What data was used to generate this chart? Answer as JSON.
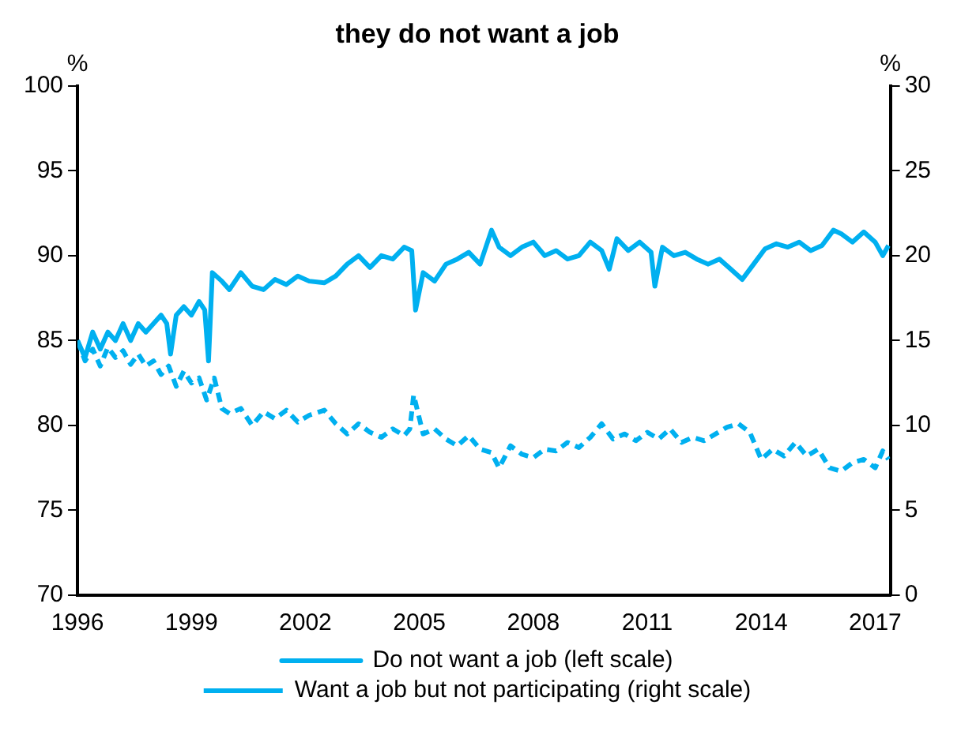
{
  "chart_data": {
    "type": "line",
    "title": "they do not want a job",
    "ylabel": "%",
    "y2label": "%",
    "xlim": [
      1996,
      2017.4
    ],
    "xticks": [
      1996,
      1999,
      2002,
      2005,
      2008,
      2011,
      2014,
      2017
    ],
    "ylim": [
      70,
      100
    ],
    "yticks": [
      70,
      75,
      80,
      85,
      90,
      95,
      100
    ],
    "y2lim": [
      0,
      30
    ],
    "y2ticks": [
      0,
      5,
      10,
      15,
      20,
      25,
      30
    ],
    "legend": "bottom",
    "grid": false,
    "series": [
      {
        "name": "Do not want a job (left scale)",
        "color": "#00b0f0",
        "line_style": "solid",
        "x": [
          1996,
          1996.2,
          1996.4,
          1996.6,
          1996.8,
          1997,
          1997.2,
          1997.4,
          1997.6,
          1997.8,
          1998,
          1998.2,
          1998.35,
          1998.45,
          1998.6,
          1998.8,
          1999,
          1999.2,
          1999.35,
          1999.45,
          1999.55,
          1999.8,
          2000,
          2000.3,
          2000.6,
          2000.9,
          2001.2,
          2001.5,
          2001.8,
          2002.1,
          2002.5,
          2002.8,
          2003.1,
          2003.4,
          2003.7,
          2004,
          2004.3,
          2004.6,
          2004.8,
          2004.9,
          2005.1,
          2005.4,
          2005.7,
          2006,
          2006.3,
          2006.6,
          2006.9,
          2007.1,
          2007.4,
          2007.7,
          2008,
          2008.3,
          2008.6,
          2008.9,
          2009.2,
          2009.5,
          2009.8,
          2010,
          2010.2,
          2010.5,
          2010.8,
          2011.1,
          2011.2,
          2011.4,
          2011.7,
          2012,
          2012.3,
          2012.6,
          2012.9,
          2013.2,
          2013.5,
          2013.8,
          2014.1,
          2014.4,
          2014.7,
          2015,
          2015.3,
          2015.6,
          2015.9,
          2016.1,
          2016.4,
          2016.7,
          2017,
          2017.2,
          2017.35
        ],
        "values": [
          85,
          84,
          85.5,
          84.5,
          85.5,
          85,
          86,
          85,
          86,
          85.5,
          86,
          86.5,
          86,
          84.2,
          86.5,
          87,
          86.5,
          87.3,
          86.8,
          83.8,
          89,
          88.5,
          88,
          89,
          88.2,
          88,
          88.6,
          88.3,
          88.8,
          88.5,
          88.4,
          88.8,
          89.5,
          90,
          89.3,
          90,
          89.8,
          90.5,
          90.3,
          86.8,
          89,
          88.5,
          89.5,
          89.8,
          90.2,
          89.5,
          91.5,
          90.5,
          90,
          90.5,
          90.8,
          90,
          90.3,
          89.8,
          90,
          90.8,
          90.3,
          89.2,
          91,
          90.3,
          90.8,
          90.2,
          88.2,
          90.5,
          90,
          90.2,
          89.8,
          89.5,
          89.8,
          89.2,
          88.6,
          89.5,
          90.4,
          90.7,
          90.5,
          90.8,
          90.3,
          90.6,
          91.5,
          91.3,
          90.8,
          91.4,
          90.8,
          90,
          90.6
        ]
      },
      {
        "name": "Want a job but not participating (right scale)",
        "color": "#00b0f0",
        "line_style": "dashed",
        "axis": "y2",
        "x": [
          1996,
          1996.2,
          1996.4,
          1996.6,
          1996.8,
          1997,
          1997.2,
          1997.4,
          1997.6,
          1997.8,
          1998,
          1998.2,
          1998.4,
          1998.6,
          1998.8,
          1999,
          1999.2,
          1999.4,
          1999.6,
          1999.8,
          2000,
          2000.3,
          2000.6,
          2000.9,
          2001.2,
          2001.5,
          2001.8,
          2002.1,
          2002.5,
          2002.8,
          2003.1,
          2003.4,
          2003.7,
          2004,
          2004.3,
          2004.6,
          2004.75,
          2004.85,
          2005.1,
          2005.4,
          2005.7,
          2006,
          2006.3,
          2006.6,
          2006.9,
          2007.1,
          2007.4,
          2007.7,
          2008,
          2008.3,
          2008.6,
          2008.9,
          2009.2,
          2009.5,
          2009.8,
          2010.1,
          2010.4,
          2010.7,
          2011,
          2011.3,
          2011.6,
          2011.9,
          2012.2,
          2012.5,
          2012.8,
          2013.1,
          2013.4,
          2013.7,
          2014,
          2014.3,
          2014.6,
          2014.9,
          2015.2,
          2015.5,
          2015.8,
          2016.1,
          2016.4,
          2016.7,
          2017,
          2017.2,
          2017.35
        ],
        "values": [
          15,
          13.8,
          14.5,
          13.5,
          14.6,
          14,
          14.4,
          13.6,
          14.2,
          13.5,
          13.8,
          13,
          13.5,
          12.3,
          13.2,
          12.5,
          12.8,
          11.5,
          12.8,
          11,
          10.7,
          11,
          10,
          10.8,
          10.4,
          10.9,
          10.2,
          10.6,
          10.9,
          10.1,
          9.5,
          10.1,
          9.6,
          9.3,
          9.8,
          9.4,
          9.8,
          11.8,
          9.5,
          9.8,
          9.2,
          8.8,
          9.4,
          8.6,
          8.4,
          7.5,
          8.8,
          8.3,
          8.1,
          8.6,
          8.5,
          9,
          8.7,
          9.3,
          10.1,
          9.2,
          9.5,
          9.1,
          9.6,
          9.2,
          9.8,
          9,
          9.3,
          9.1,
          9.5,
          9.9,
          10.1,
          9.6,
          8,
          8.6,
          8.2,
          9,
          8.2,
          8.6,
          7.5,
          7.3,
          7.8,
          8,
          7.5,
          8.5,
          8
        ]
      }
    ]
  }
}
